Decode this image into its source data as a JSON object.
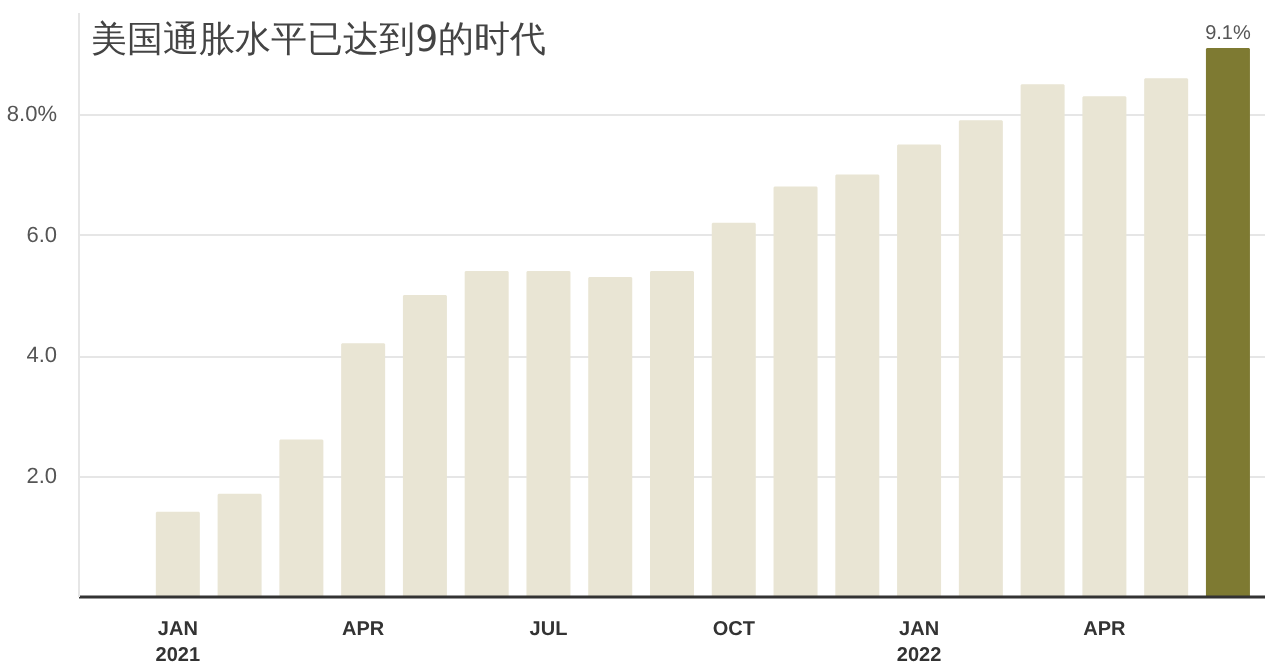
{
  "chart_data": {
    "type": "bar",
    "categories": [
      "JAN\n2021",
      null,
      null,
      "APR",
      null,
      null,
      "JUL",
      null,
      null,
      "OCT",
      null,
      null,
      "JAN\n2022",
      null,
      null,
      "APR",
      null,
      null
    ],
    "values": [
      1.4,
      1.7,
      2.6,
      4.2,
      5.0,
      5.4,
      5.4,
      5.3,
      5.4,
      6.2,
      6.8,
      7.0,
      7.5,
      7.9,
      8.5,
      8.3,
      8.6,
      9.1
    ],
    "colors": [
      "#e9e5d4",
      "#e9e5d4",
      "#e9e5d4",
      "#e9e5d4",
      "#e9e5d4",
      "#e9e5d4",
      "#e9e5d4",
      "#e9e5d4",
      "#e9e5d4",
      "#e9e5d4",
      "#e9e5d4",
      "#e9e5d4",
      "#e9e5d4",
      "#e9e5d4",
      "#e9e5d4",
      "#e9e5d4",
      "#e9e5d4",
      "#7e7a32"
    ],
    "value_labels": [
      null,
      null,
      null,
      null,
      null,
      null,
      null,
      null,
      null,
      null,
      null,
      null,
      null,
      null,
      null,
      null,
      null,
      "9.1%"
    ],
    "ylim": [
      0,
      9.7
    ],
    "yticks": [
      {
        "value": 2,
        "label": "2.0"
      },
      {
        "value": 4,
        "label": "4.0"
      },
      {
        "value": 6,
        "label": "6.0"
      },
      {
        "value": 8,
        "label": "8.0%"
      }
    ],
    "grid": "y",
    "annotations": [
      "美国通胀水平已达到9的时代"
    ]
  }
}
